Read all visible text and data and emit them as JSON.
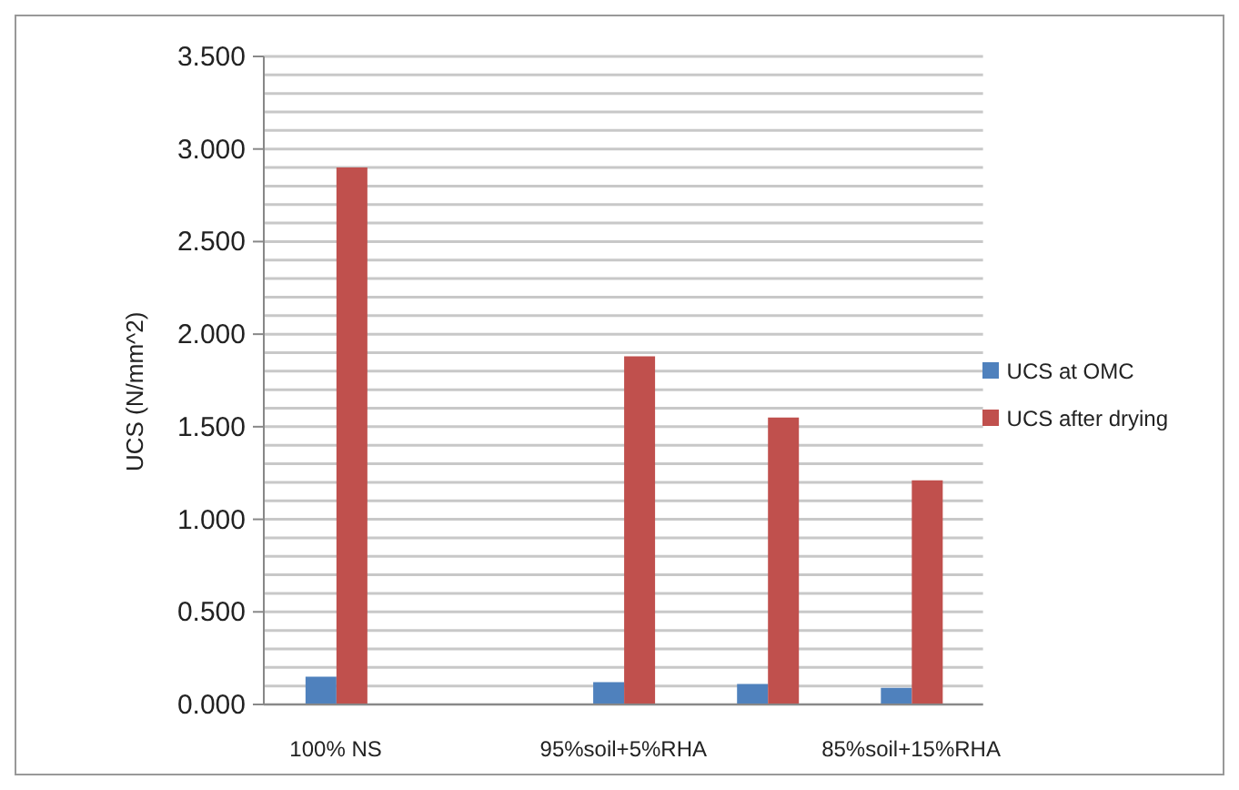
{
  "chart_data": {
    "type": "bar",
    "ylabel": "UCS (N/mm^2)",
    "categories": [
      "100% NS",
      null,
      "95%soil+5%RHA",
      null,
      "85%soil+15%RHA"
    ],
    "series": [
      {
        "name": "UCS at OMC",
        "color": "#4f81bd",
        "values": [
          0.15,
          null,
          0.12,
          0.11,
          0.09
        ]
      },
      {
        "name": "UCS  after drying",
        "color": "#c0504d",
        "values": [
          2.9,
          null,
          1.88,
          1.55,
          1.21
        ]
      }
    ],
    "ylim": [
      0,
      3.5
    ],
    "yticks": [
      {
        "value": 0,
        "label": "0.000"
      },
      {
        "value": 0.1,
        "label": null
      },
      {
        "value": 0.2,
        "label": null
      },
      {
        "value": 0.3,
        "label": null
      },
      {
        "value": 0.4,
        "label": null
      },
      {
        "value": 0.5,
        "label": "0.500"
      },
      {
        "value": 0.6,
        "label": null
      },
      {
        "value": 0.7,
        "label": null
      },
      {
        "value": 0.8,
        "label": null
      },
      {
        "value": 0.9,
        "label": null
      },
      {
        "value": 1,
        "label": "1.000"
      },
      {
        "value": 1.1,
        "label": null
      },
      {
        "value": 1.2,
        "label": null
      },
      {
        "value": 1.3,
        "label": null
      },
      {
        "value": 1.4,
        "label": null
      },
      {
        "value": 1.5,
        "label": "1.500"
      },
      {
        "value": 1.6,
        "label": null
      },
      {
        "value": 1.7,
        "label": null
      },
      {
        "value": 1.8,
        "label": null
      },
      {
        "value": 1.9,
        "label": null
      },
      {
        "value": 2,
        "label": "2.000"
      },
      {
        "value": 2.1,
        "label": null
      },
      {
        "value": 2.2,
        "label": null
      },
      {
        "value": 2.3,
        "label": null
      },
      {
        "value": 2.4,
        "label": null
      },
      {
        "value": 2.5,
        "label": "2.500"
      },
      {
        "value": 2.6,
        "label": null
      },
      {
        "value": 2.7,
        "label": null
      },
      {
        "value": 2.8,
        "label": null
      },
      {
        "value": 2.9,
        "label": null
      },
      {
        "value": 3,
        "label": "3.000"
      },
      {
        "value": 3.1,
        "label": null
      },
      {
        "value": 3.2,
        "label": null
      },
      {
        "value": 3.3,
        "label": null
      },
      {
        "value": 3.4,
        "label": null
      },
      {
        "value": 3.5,
        "label": "3.500"
      }
    ],
    "grid": "y",
    "legend": "right"
  }
}
